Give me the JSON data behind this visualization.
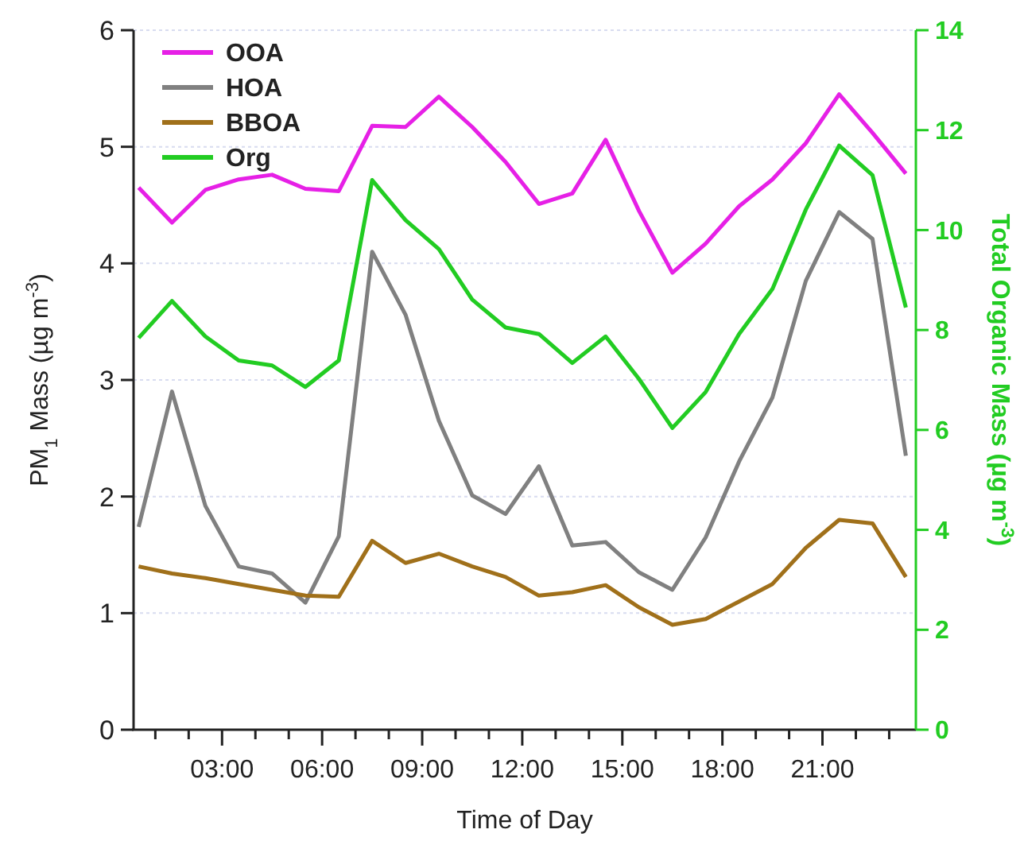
{
  "chart_data": {
    "type": "line",
    "xlabel": "Time of Day",
    "ylabel": "PM$_{1}$ Mass (µg m$^{-3}$)",
    "y2label": "Total Organic Mass (µg m$^{-3}$)",
    "x": [
      0.5,
      1.5,
      2.5,
      3.5,
      4.5,
      5.5,
      6.5,
      7.5,
      8.5,
      9.5,
      10.5,
      11.5,
      12.5,
      13.5,
      14.5,
      15.5,
      16.5,
      17.5,
      18.5,
      19.5,
      20.5,
      21.5,
      22.5,
      23.5
    ],
    "series": [
      {
        "name": "OOA",
        "color": "#e620e6",
        "values": [
          4.65,
          4.35,
          4.63,
          4.72,
          4.76,
          4.64,
          4.62,
          5.18,
          5.17,
          5.43,
          5.17,
          4.87,
          4.51,
          4.6,
          5.06,
          4.45,
          3.92,
          4.17,
          4.49,
          4.72,
          5.03,
          5.45,
          5.12,
          4.77
        ]
      },
      {
        "name": "HOA",
        "color": "#808080",
        "values": [
          1.74,
          2.9,
          1.92,
          1.4,
          1.34,
          1.09,
          1.66,
          4.1,
          3.56,
          2.65,
          2.01,
          1.85,
          2.26,
          1.58,
          1.61,
          1.35,
          1.2,
          1.65,
          2.3,
          2.85,
          3.85,
          4.44,
          4.21,
          2.35
        ]
      },
      {
        "name": "BBOA",
        "color": "#a0701a",
        "values": [
          1.4,
          1.34,
          1.3,
          1.25,
          1.2,
          1.15,
          1.14,
          1.62,
          1.43,
          1.51,
          1.4,
          1.31,
          1.15,
          1.18,
          1.24,
          1.05,
          0.9,
          0.95,
          1.1,
          1.25,
          1.56,
          1.8,
          1.77,
          1.31
        ]
      },
      {
        "name": "Org",
        "color": "#22cc22",
        "axis": "y2",
        "values": [
          7.84,
          8.58,
          7.87,
          7.39,
          7.29,
          6.86,
          7.39,
          11.0,
          10.2,
          9.62,
          8.61,
          8.05,
          7.92,
          7.34,
          7.87,
          7.02,
          6.04,
          6.76,
          7.92,
          8.82,
          10.41,
          11.69,
          11.1,
          8.45
        ]
      }
    ],
    "xlim": [
      0.3,
      23.8
    ],
    "xticks": [
      {
        "value": 1,
        "label": null
      },
      {
        "value": 2,
        "label": null
      },
      {
        "value": 3,
        "label": "03:00"
      },
      {
        "value": 4,
        "label": null
      },
      {
        "value": 5,
        "label": null
      },
      {
        "value": 6,
        "label": "06:00"
      },
      {
        "value": 7,
        "label": null
      },
      {
        "value": 8,
        "label": null
      },
      {
        "value": 9,
        "label": "09:00"
      },
      {
        "value": 10,
        "label": null
      },
      {
        "value": 11,
        "label": null
      },
      {
        "value": 12,
        "label": "12:00"
      },
      {
        "value": 13,
        "label": null
      },
      {
        "value": 14,
        "label": null
      },
      {
        "value": 15,
        "label": "15:00"
      },
      {
        "value": 16,
        "label": null
      },
      {
        "value": 17,
        "label": null
      },
      {
        "value": 18,
        "label": "18:00"
      },
      {
        "value": 19,
        "label": null
      },
      {
        "value": 20,
        "label": null
      },
      {
        "value": 21,
        "label": "21:00"
      },
      {
        "value": 22,
        "label": null
      },
      {
        "value": 23,
        "label": null
      }
    ],
    "ylim": [
      0,
      6
    ],
    "yticks": [
      0,
      1,
      2,
      3,
      4,
      5,
      6
    ],
    "y2lim": [
      0,
      14
    ],
    "y2ticks": [
      0,
      2,
      4,
      6,
      8,
      10,
      12,
      14
    ],
    "grid": "y",
    "legend": "top left",
    "marker": "none",
    "line_style": "solid"
  }
}
